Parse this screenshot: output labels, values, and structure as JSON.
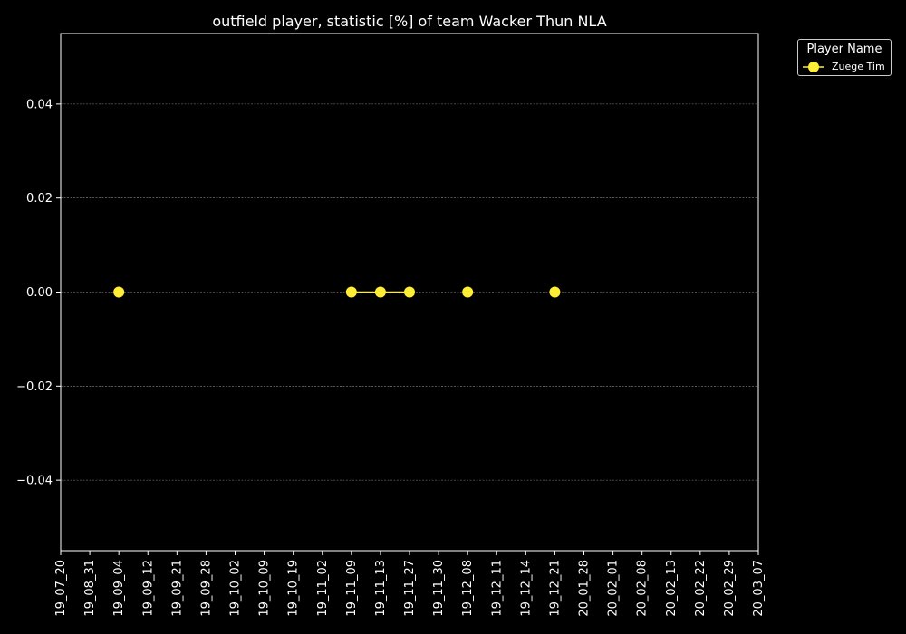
{
  "chart_data": {
    "type": "line",
    "title": "outfield player, statistic [%] of team Wacker Thun NLA",
    "xlabel": "",
    "ylabel": "",
    "categories": [
      "19_07_20",
      "19_08_31",
      "19_09_04",
      "19_09_12",
      "19_09_21",
      "19_09_28",
      "19_10_02",
      "19_10_09",
      "19_10_19",
      "19_11_02",
      "19_11_09",
      "19_11_13",
      "19_11_27",
      "19_11_30",
      "19_12_08",
      "19_12_11",
      "19_12_14",
      "19_12_21",
      "20_01_28",
      "20_02_01",
      "20_02_08",
      "20_02_13",
      "20_02_22",
      "20_02_29",
      "20_03_07"
    ],
    "y_ticks": [
      "0.04",
      "0.02",
      "0.00",
      "−0.02",
      "−0.04"
    ],
    "y_tick_values": [
      0.04,
      0.02,
      0.0,
      -0.02,
      -0.04
    ],
    "ylim": [
      -0.055,
      0.055
    ],
    "grid": true,
    "legend_title": "Player Name",
    "legend_position": "outside-top-right",
    "series": [
      {
        "name": "Zuege Tim",
        "color": "#ffee33",
        "segments": [
          [
            {
              "x": "19_09_04",
              "y": 0.0
            }
          ],
          [
            {
              "x": "19_11_09",
              "y": 0.0
            },
            {
              "x": "19_11_13",
              "y": 0.0
            },
            {
              "x": "19_11_27",
              "y": 0.0
            }
          ],
          [
            {
              "x": "19_12_08",
              "y": 0.0
            }
          ],
          [
            {
              "x": "19_12_21",
              "y": 0.0
            }
          ]
        ]
      }
    ]
  }
}
